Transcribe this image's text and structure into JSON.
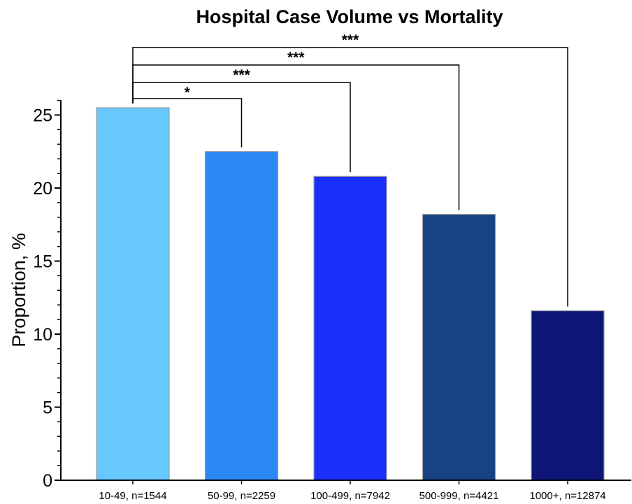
{
  "chart_data": {
    "type": "bar",
    "title": "Hospital Case Volume vs Mortality",
    "xlabel": "",
    "ylabel": "Proportion, %",
    "ylim": [
      0,
      26
    ],
    "yticks": [
      0,
      5,
      10,
      15,
      20,
      25
    ],
    "grid": false,
    "categories": [
      "10-49, n=1544",
      "50-99, n=2259",
      "100-499, n=7942",
      "500-999, n=4421",
      "1000+, n=12874"
    ],
    "values": [
      25.5,
      22.5,
      20.8,
      18.2,
      11.6
    ],
    "colors": [
      "#66c8fc",
      "#2b87f4",
      "#1a2ffc",
      "#174283",
      "#0d1578"
    ],
    "comparisons": [
      {
        "from": 0,
        "to": 1,
        "label": "*"
      },
      {
        "from": 0,
        "to": 2,
        "label": "***"
      },
      {
        "from": 0,
        "to": 3,
        "label": "***"
      },
      {
        "from": 0,
        "to": 4,
        "label": "***"
      }
    ]
  }
}
